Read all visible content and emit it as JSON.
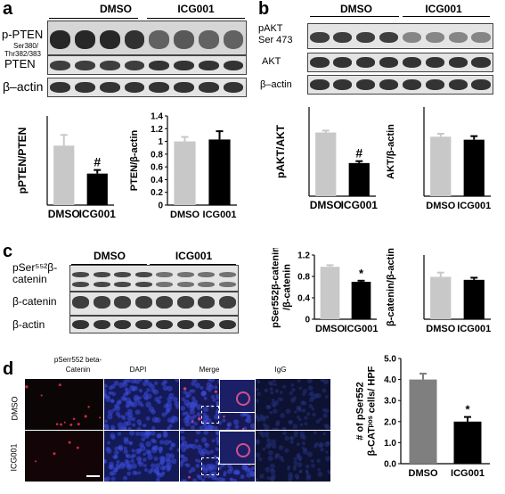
{
  "panels": {
    "a": {
      "label": "a",
      "groups": [
        "DMSO",
        "ICG001"
      ],
      "blot_labels": [
        "p-PTEN",
        "Ser380/",
        "Thr382/383",
        "PTEN",
        "β–actin"
      ]
    },
    "b": {
      "label": "b",
      "groups": [
        "DMSO",
        "ICG001"
      ],
      "blot_labels": [
        "pAKT",
        "Ser 473",
        "AKT",
        "β–actin"
      ]
    },
    "c": {
      "label": "c",
      "groups": [
        "DMSO",
        "ICG001"
      ],
      "blot_labels": [
        "pSer⁵⁵²β-",
        "catenin",
        "β-catenin",
        "β-actin"
      ]
    },
    "d": {
      "label": "d",
      "columns": [
        "pSerr552 beta-\nCatenin",
        "DAPI",
        "Merge",
        "IgG"
      ],
      "rows": [
        "DMSO",
        "ICG001"
      ]
    }
  },
  "chart_data": [
    {
      "id": "a1",
      "type": "bar",
      "categories": [
        "DMSO",
        "ICG001"
      ],
      "values": [
        1.0,
        0.53
      ],
      "errors": [
        0.18,
        0.06
      ],
      "colors": [
        "#c8c8c8",
        "#000000"
      ],
      "ylabel": "pPTEN/PTEN",
      "ylim": [
        0,
        1.5
      ],
      "yticks": [],
      "annotations": [
        "",
        "#"
      ]
    },
    {
      "id": "a2",
      "type": "bar",
      "categories": [
        "DMSO",
        "ICG001"
      ],
      "values": [
        1.0,
        1.03
      ],
      "errors": [
        0.07,
        0.13
      ],
      "colors": [
        "#c8c8c8",
        "#000000"
      ],
      "ylabel": "PTEN/β-actin",
      "ylim": [
        0,
        1.4
      ],
      "yticks": [
        "0",
        "0.2",
        "0.4",
        "0.6",
        "0.8",
        "1",
        "1.2",
        "1.4"
      ],
      "annotations": [
        "",
        ""
      ]
    },
    {
      "id": "b1",
      "type": "bar",
      "categories": [
        "DMSO",
        "ICG001"
      ],
      "values": [
        1.0,
        0.52
      ],
      "errors": [
        0.03,
        0.03
      ],
      "colors": [
        "#c8c8c8",
        "#000000"
      ],
      "ylabel": "pAKT/AKT",
      "ylim": [
        0,
        1.4
      ],
      "yticks": [],
      "annotations": [
        "",
        "#"
      ]
    },
    {
      "id": "b2",
      "type": "bar",
      "categories": [
        "DMSO",
        "ICG001"
      ],
      "values": [
        1.0,
        0.95
      ],
      "errors": [
        0.05,
        0.06
      ],
      "colors": [
        "#c8c8c8",
        "#000000"
      ],
      "ylabel": "AKT/β-actin",
      "ylim": [
        0,
        1.5
      ],
      "yticks": [],
      "annotations": [
        "",
        ""
      ]
    },
    {
      "id": "c1",
      "type": "bar",
      "categories": [
        "DMSO",
        "ICG001"
      ],
      "values": [
        0.98,
        0.7
      ],
      "errors": [
        0.03,
        0.02
      ],
      "colors": [
        "#c8c8c8",
        "#000000"
      ],
      "ylabel": "pSer552β-catenin\n/β-catenin",
      "ylim": [
        0,
        1.2
      ],
      "yticks": [
        "0",
        "0.4",
        "0.8",
        "1.2"
      ],
      "annotations": [
        "",
        "*"
      ]
    },
    {
      "id": "c2",
      "type": "bar",
      "categories": [
        "DMSO",
        "ICG001"
      ],
      "values": [
        0.99,
        0.92
      ],
      "errors": [
        0.1,
        0.05
      ],
      "colors": [
        "#c8c8c8",
        "#000000"
      ],
      "ylabel": "β-catenin/β-actin",
      "ylim": [
        0,
        1.5
      ],
      "yticks": [],
      "annotations": [
        "",
        ""
      ]
    },
    {
      "id": "d1",
      "type": "bar",
      "categories": [
        "DMSO",
        "ICG001"
      ],
      "values": [
        4.0,
        2.0
      ],
      "errors": [
        0.28,
        0.22
      ],
      "colors": [
        "#7f7f7f",
        "#000000"
      ],
      "ylabel": "# of pSer552\nβ-CATᵖᵒˢ cells/ HPF",
      "ylim": [
        0,
        5
      ],
      "yticks": [
        "0.0",
        "1.0",
        "2.0",
        "3.0",
        "4.0",
        "5.0"
      ],
      "annotations": [
        "",
        "*"
      ]
    }
  ]
}
